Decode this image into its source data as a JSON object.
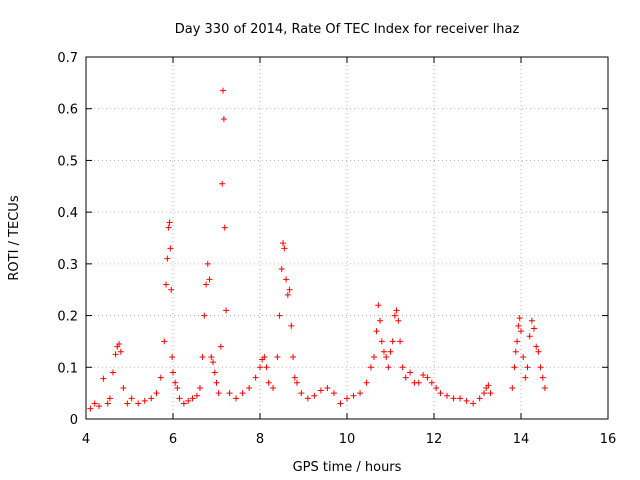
{
  "chart_data": {
    "type": "scatter",
    "title": "Day 330 of 2014, Rate Of TEC Index for receiver lhaz",
    "xlabel": "GPS time / hours",
    "ylabel": "ROTI / TECUs",
    "xlim": [
      4,
      16
    ],
    "ylim": [
      0,
      0.7
    ],
    "xticks": [
      "4",
      "6",
      "8",
      "10",
      "12",
      "14",
      "16"
    ],
    "yticks": [
      "0",
      "0.1",
      "0.2",
      "0.3",
      "0.4",
      "0.5",
      "0.6",
      "0.7"
    ],
    "grid": true,
    "marker": "+",
    "color": "#ff0000",
    "series": [
      {
        "x": [
          4.1,
          4.2,
          4.3,
          4.4,
          4.5,
          4.55,
          4.62,
          4.68,
          4.72,
          4.76,
          4.8,
          4.86,
          4.95,
          5.05,
          5.2,
          5.35,
          5.5,
          5.62,
          5.72,
          5.8,
          5.84,
          5.87,
          5.9,
          5.92,
          5.94,
          5.96,
          5.98,
          6.0,
          6.05,
          6.1,
          6.15,
          6.25,
          6.35,
          6.45,
          6.55,
          6.62,
          6.68,
          6.72,
          6.76,
          6.8,
          6.84,
          6.88,
          6.92,
          6.96,
          7.0,
          7.05,
          7.1,
          7.13,
          7.15,
          7.17,
          7.19,
          7.22,
          7.3,
          7.45,
          7.6,
          7.75,
          7.9,
          8.0,
          8.05,
          8.1,
          8.15,
          8.2,
          8.3,
          8.4,
          8.45,
          8.5,
          8.53,
          8.56,
          8.6,
          8.64,
          8.68,
          8.72,
          8.76,
          8.8,
          8.85,
          8.95,
          9.1,
          9.25,
          9.4,
          9.55,
          9.7,
          9.85,
          10.0,
          10.15,
          10.3,
          10.45,
          10.55,
          10.62,
          10.68,
          10.72,
          10.76,
          10.8,
          10.85,
          10.9,
          10.95,
          11.0,
          11.05,
          11.1,
          11.14,
          11.18,
          11.22,
          11.28,
          11.35,
          11.45,
          11.55,
          11.65,
          11.75,
          11.85,
          11.95,
          12.05,
          12.15,
          12.3,
          12.45,
          12.6,
          12.75,
          12.9,
          13.05,
          13.15,
          13.2,
          13.25,
          13.3,
          13.8,
          13.85,
          13.88,
          13.91,
          13.94,
          13.97,
          14.0,
          14.05,
          14.1,
          14.15,
          14.2,
          14.25,
          14.3,
          14.35,
          14.4,
          14.45,
          14.5,
          14.55
        ],
        "y": [
          0.02,
          0.03,
          0.025,
          0.078,
          0.03,
          0.04,
          0.09,
          0.125,
          0.14,
          0.145,
          0.13,
          0.06,
          0.03,
          0.04,
          0.03,
          0.035,
          0.04,
          0.05,
          0.08,
          0.15,
          0.26,
          0.31,
          0.37,
          0.38,
          0.33,
          0.25,
          0.12,
          0.09,
          0.07,
          0.06,
          0.04,
          0.03,
          0.035,
          0.04,
          0.045,
          0.06,
          0.12,
          0.2,
          0.26,
          0.3,
          0.27,
          0.12,
          0.11,
          0.09,
          0.07,
          0.05,
          0.14,
          0.455,
          0.635,
          0.58,
          0.37,
          0.21,
          0.05,
          0.04,
          0.05,
          0.06,
          0.08,
          0.1,
          0.115,
          0.12,
          0.1,
          0.07,
          0.06,
          0.12,
          0.2,
          0.29,
          0.34,
          0.33,
          0.27,
          0.24,
          0.25,
          0.18,
          0.12,
          0.08,
          0.07,
          0.05,
          0.04,
          0.045,
          0.055,
          0.06,
          0.05,
          0.03,
          0.04,
          0.045,
          0.05,
          0.07,
          0.1,
          0.12,
          0.17,
          0.22,
          0.19,
          0.15,
          0.13,
          0.12,
          0.1,
          0.13,
          0.15,
          0.2,
          0.21,
          0.19,
          0.15,
          0.1,
          0.08,
          0.09,
          0.07,
          0.07,
          0.085,
          0.08,
          0.07,
          0.06,
          0.05,
          0.045,
          0.04,
          0.04,
          0.035,
          0.03,
          0.04,
          0.05,
          0.06,
          0.065,
          0.05,
          0.06,
          0.1,
          0.13,
          0.15,
          0.18,
          0.195,
          0.17,
          0.12,
          0.08,
          0.1,
          0.16,
          0.19,
          0.175,
          0.14,
          0.13,
          0.1,
          0.08,
          0.06
        ]
      }
    ]
  }
}
